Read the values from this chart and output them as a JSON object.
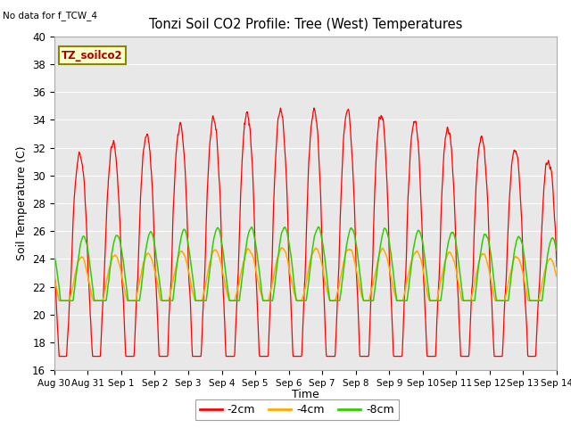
{
  "title": "Tonzi Soil CO2 Profile: Tree (West) Temperatures",
  "no_data_label": "No data for f_TCW_4",
  "ylabel": "Soil Temperature (C)",
  "xlabel": "Time",
  "legend_box_label": "TZ_soilco2",
  "ylim": [
    16,
    40
  ],
  "background_color": "#e8e8e8",
  "series_colors": [
    "#ff0000",
    "#ffaa00",
    "#33cc00"
  ],
  "series_labels": [
    "-2cm",
    "-4cm",
    "-8cm"
  ],
  "x_tick_labels": [
    "Aug 30",
    "Aug 31",
    "Sep 1",
    "Sep 2",
    "Sep 3",
    "Sep 4",
    "Sep 5",
    "Sep 6",
    "Sep 7",
    "Sep 8",
    "Sep 9",
    "Sep 10",
    "Sep 11",
    "Sep 12",
    "Sep 13",
    "Sep 14"
  ],
  "figsize": [
    6.4,
    4.8
  ],
  "dpi": 100
}
